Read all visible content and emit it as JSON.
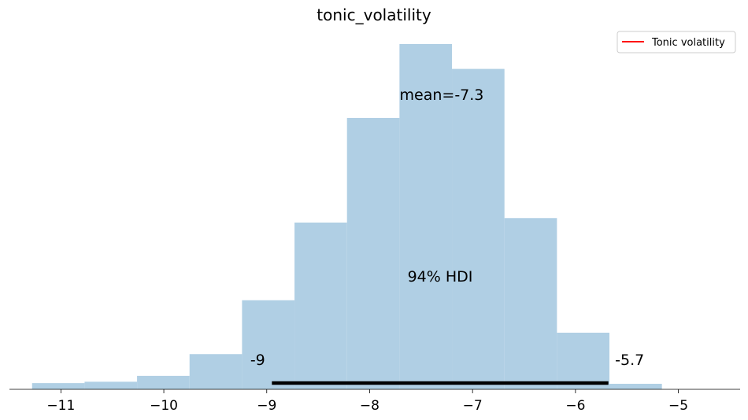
{
  "chart_data": {
    "type": "histogram",
    "title": "tonic_volatility",
    "xlabel": "",
    "ylabel": "",
    "xlim": [
      -11.5,
      -4.4
    ],
    "x_ticks": [
      -11,
      -10,
      -9,
      -8,
      -7,
      -6,
      -5
    ],
    "x_tick_labels": [
      "−11",
      "−10",
      "−9",
      "−8",
      "−7",
      "−6",
      "−5"
    ],
    "y_axis_visible": false,
    "bin_edges": [
      -11.28,
      -10.77,
      -10.26,
      -9.75,
      -9.24,
      -8.73,
      -8.22,
      -7.71,
      -7.2,
      -6.69,
      -6.18,
      -5.67,
      -5.16
    ],
    "bin_heights": [
      0.018,
      0.022,
      0.039,
      0.102,
      0.258,
      0.483,
      0.786,
      1.0,
      0.928,
      0.496,
      0.164,
      0.016
    ],
    "bar_color": "#b0cfe4",
    "mean": -7.3,
    "mean_label": "mean=-7.3",
    "hdi": {
      "prob_label": "94% HDI",
      "lower": -8.95,
      "upper": -5.68,
      "lower_label": "-9",
      "upper_label": "-5.7",
      "color": "#000000"
    },
    "legend": {
      "position": "top-right",
      "entries": [
        {
          "name": "Tonic volatility",
          "color": "#ff0000"
        }
      ]
    },
    "grid": false
  }
}
